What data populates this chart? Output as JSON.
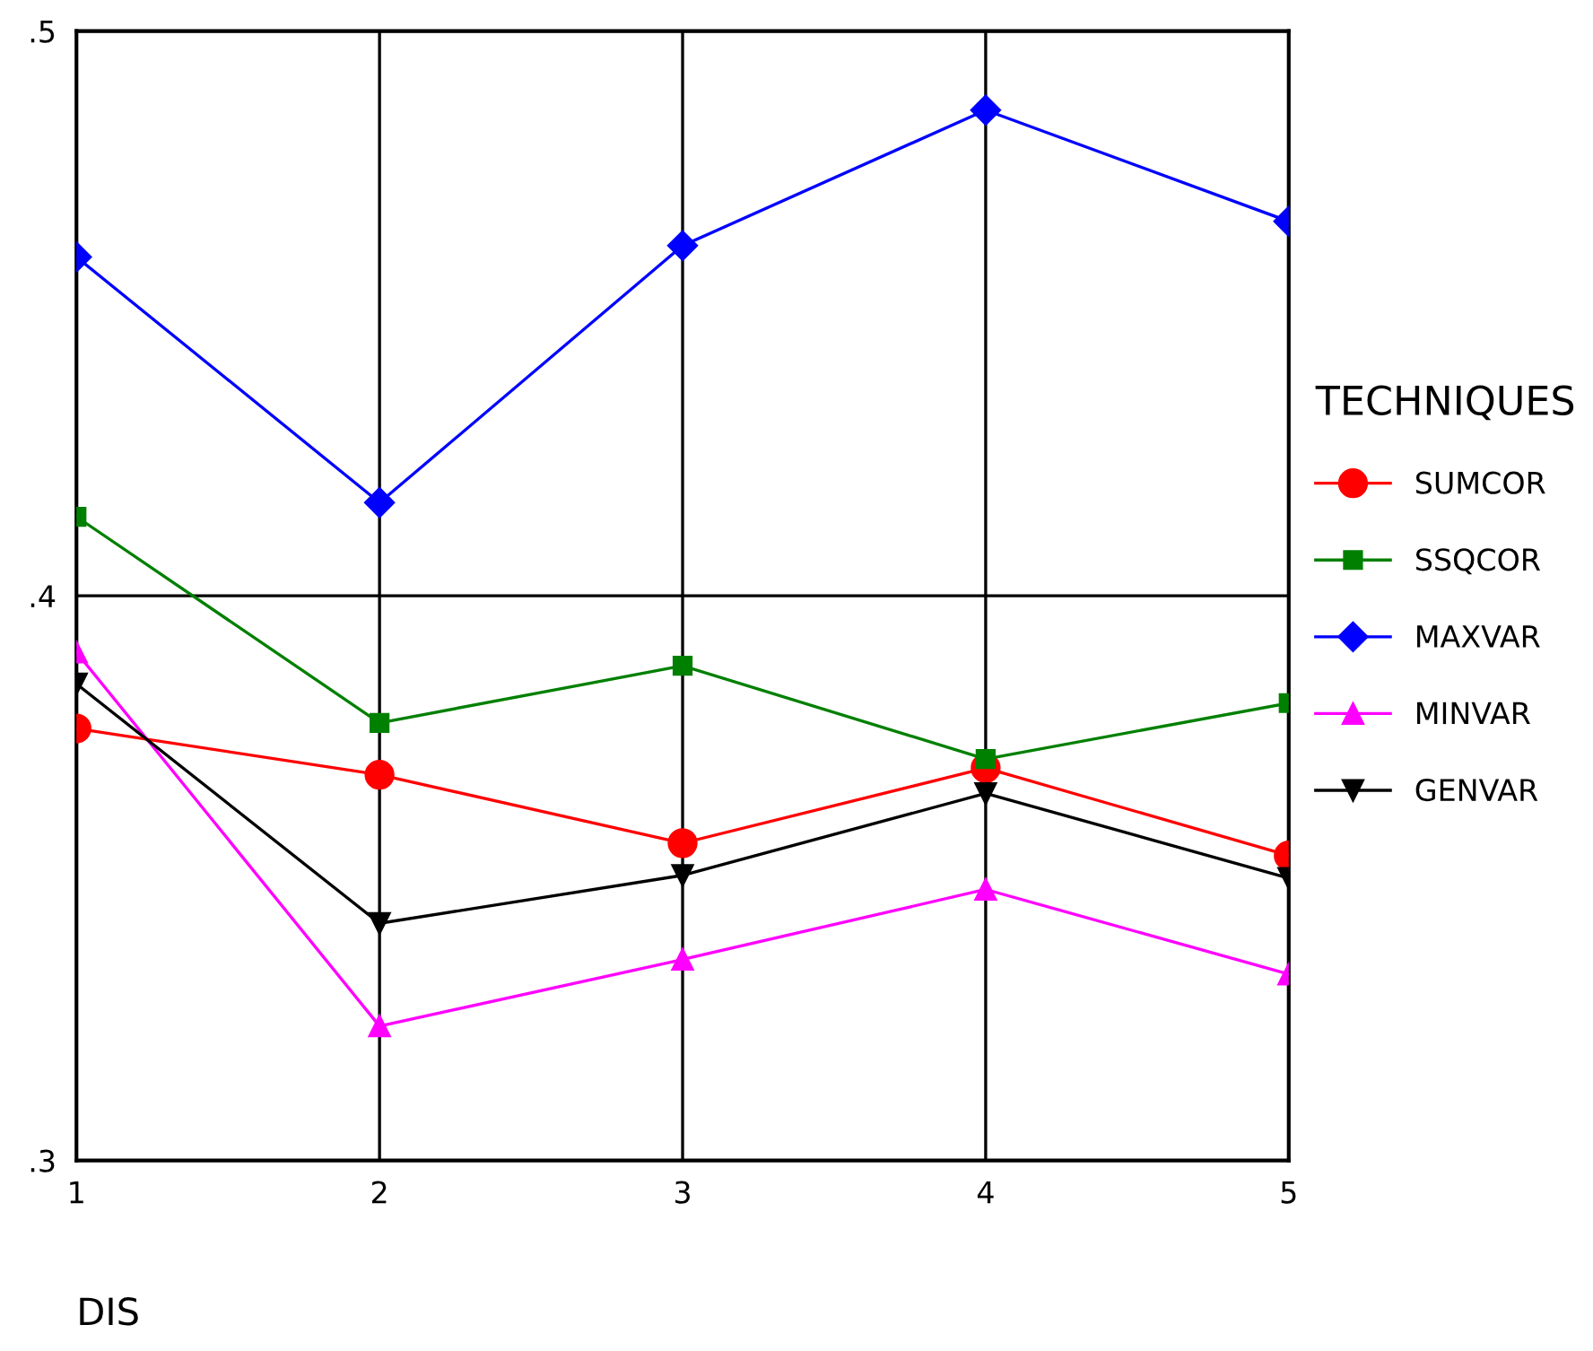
{
  "chart_data": {
    "type": "line",
    "xlabel": "DIS",
    "legend_title": "TECHNIQUES",
    "x": [
      1,
      2,
      3,
      4,
      5
    ],
    "xlim": [
      1,
      5
    ],
    "xticks": [
      1,
      2,
      3,
      4,
      5
    ],
    "ylim": [
      0.3,
      0.5
    ],
    "yticks": [
      {
        "value": 0.3,
        "label": ".3"
      },
      {
        "value": 0.4,
        "label": ".4"
      },
      {
        "value": 0.5,
        "label": ".5"
      }
    ],
    "grid": true,
    "legend": "right",
    "line_style": "solid",
    "series": [
      {
        "name": "SUMCOR",
        "color": "#ff0000",
        "marker": "circle",
        "values": [
          0.3765,
          0.3683,
          0.3562,
          0.3695,
          0.354
        ]
      },
      {
        "name": "SSQCOR",
        "color": "#008000",
        "marker": "square",
        "values": [
          0.414,
          0.3775,
          0.3876,
          0.3711,
          0.381
        ]
      },
      {
        "name": "MAXVAR",
        "color": "#0000ff",
        "marker": "diamond",
        "values": [
          0.46,
          0.4165,
          0.462,
          0.486,
          0.4663
        ]
      },
      {
        "name": "MINVAR",
        "color": "#ff00ff",
        "marker": "triangle",
        "values": [
          0.39,
          0.3238,
          0.3356,
          0.348,
          0.333
        ]
      },
      {
        "name": "GENVAR",
        "color": "#000000",
        "marker": "triangle_down",
        "values": [
          0.3844,
          0.342,
          0.3505,
          0.365,
          0.35
        ]
      }
    ]
  }
}
